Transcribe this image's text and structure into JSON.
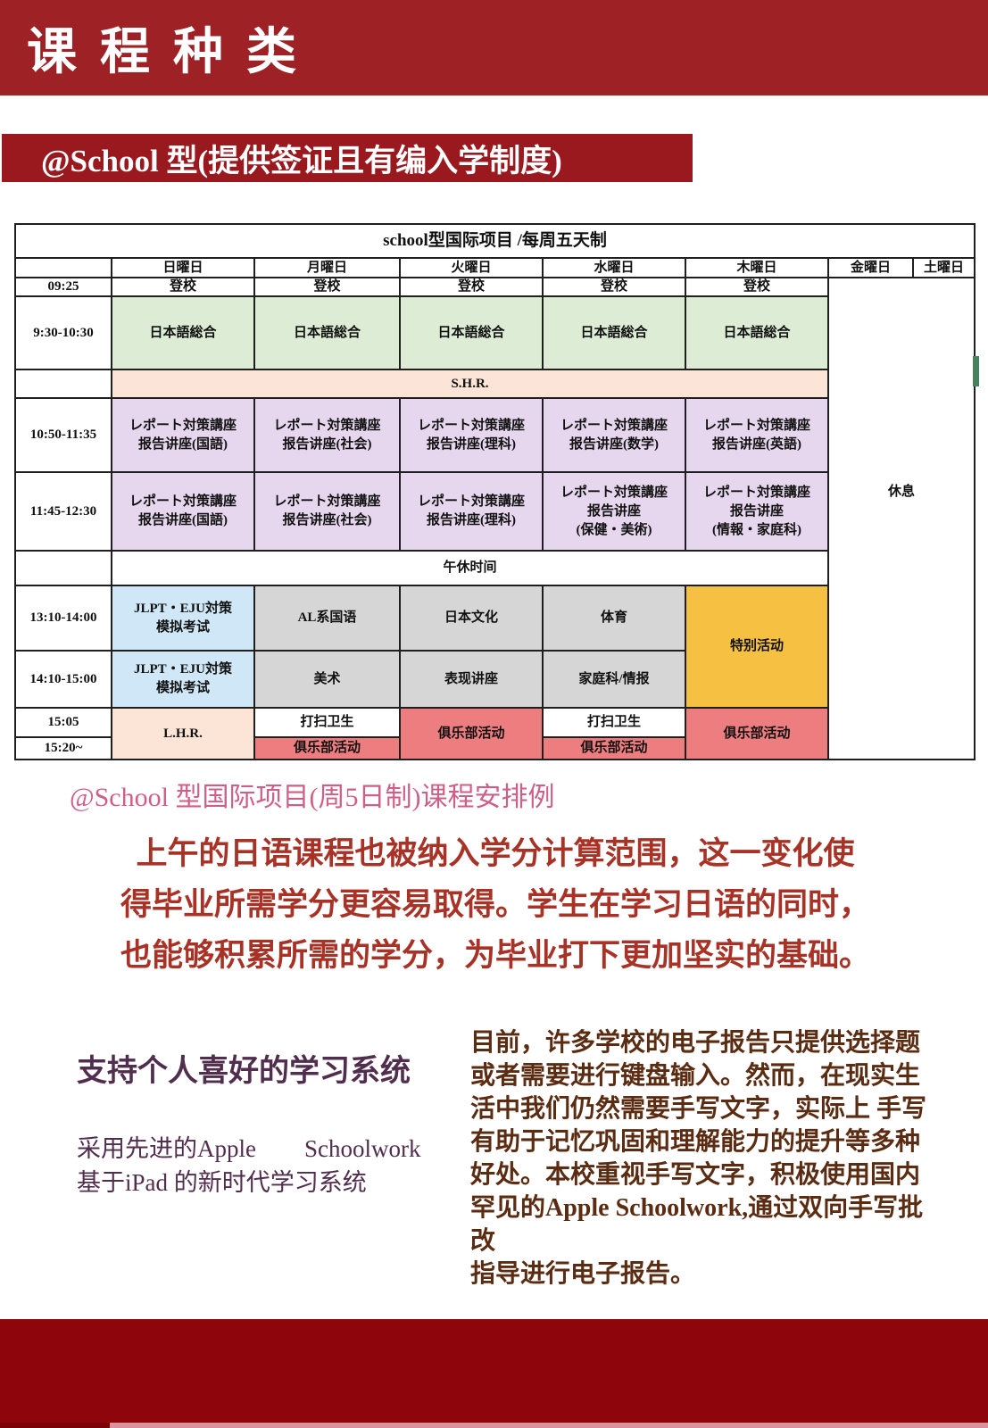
{
  "header": {
    "title": "课程种类"
  },
  "banner": {
    "label": "@School 型(提供签证且有编入学制度)"
  },
  "timetable": {
    "title": "school型国际项目 /每周五天制",
    "days": [
      "日曜日",
      "月曜日",
      "火曜日",
      "水曜日",
      "木曜日",
      "金曜日",
      "土曜日"
    ],
    "times": [
      "09:25",
      "9:30-10:30",
      "10:50-11:35",
      "11:45-12:30",
      "13:10-14:00",
      "14:10-15:00",
      "15:05",
      "15:20~"
    ],
    "cells": {
      "attend": "登校",
      "japanese": "日本語総合",
      "shr": "S.H.R.",
      "lunch": "午休时间",
      "rest": "休息",
      "jlpt": "JLPT・EJU対策\n模拟考试",
      "al_kokugo": "AL系国语",
      "culture": "日本文化",
      "pe": "体育",
      "special": "特别活动",
      "art": "美术",
      "hyogen": "表现讲座",
      "katei": "家庭科/情报",
      "lhr": "L.H.R.",
      "cleaning": "打扫卫生",
      "club": "俱乐部活动"
    },
    "report_1050": [
      "レポート対策講座\n报告讲座(国語)",
      "レポート対策講座\n报告讲座(社会)",
      "レポート対策講座\n报告讲座(理科)",
      "レポート対策講座\n报告讲座(数学)",
      "レポート対策講座\n报告讲座(英語)"
    ],
    "report_1145": [
      "レポート対策講座\n报告讲座(国語)",
      "レポート対策講座\n报告讲座(社会)",
      "レポート対策講座\n报告讲座(理科)",
      "レポート対策講座\n报告讲座\n(保健・美術)",
      "レポート対策講座\n报告讲座\n(情報・家庭科)"
    ]
  },
  "caption": {
    "text": "@School 型国际项目(周5日制)课程安排例"
  },
  "highlight": {
    "text": "上午的日语课程也被纳入学分计算范围，这一变化使\n得毕业所需学分更容易取得。学生在学习日语的同时，\n也能够积累所需的学分，为毕业打下更加坚实的基础。"
  },
  "system": {
    "heading": "支持个人喜好的学习系统",
    "body": "采用先进的Apple　　Schoolwork\n基于iPad 的新时代学习系统",
    "paragraph": "目前，许多学校的电子报告只提供选择题\n或者需要进行键盘输入。然而，在现实生\n活中我们仍然需要手写文字，实际上 手写\n有助于记忆巩固和理解能力的提升等多种\n好处。本校重视手写文字，积极使用国内\n罕见的Apple Schoolwork,通过双向手写批改\n指导进行电子报告。"
  },
  "colors": {
    "header_red": "#9e2126",
    "banner_red": "#9a191f",
    "footer_red": "#8e060b",
    "footer_strip_pink": "#db929a",
    "cell_green": "#ddedd5",
    "cell_peach": "#fce4d6",
    "cell_purple": "#e7d7ee",
    "cell_blue": "#cfe7f6",
    "cell_gray": "#d6d6d6",
    "cell_amber": "#f6c142",
    "cell_coral": "#ee7d80",
    "caption_pink": "#cf5f86",
    "highlight_red": "#a93226",
    "heading_plum": "#512d4e",
    "paragraph_brown": "#5b2c12"
  }
}
